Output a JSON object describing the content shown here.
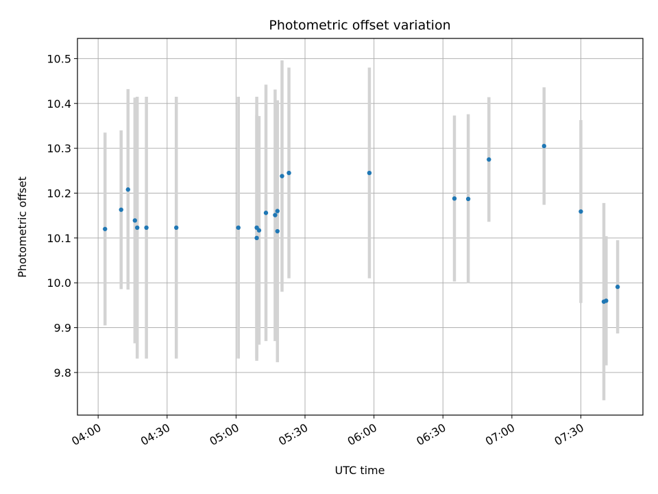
{
  "chart_data": {
    "type": "scatter",
    "title": "Photometric offset variation",
    "xlabel": "UTC time",
    "ylabel": "Photometric offset",
    "xlim": [
      "03:51",
      "07:57"
    ],
    "ylim": [
      9.705,
      10.545
    ],
    "grid": true,
    "xticks": [
      "04:00",
      "04:30",
      "05:00",
      "05:30",
      "06:00",
      "06:30",
      "07:00",
      "07:30"
    ],
    "yticks": [
      9.8,
      9.9,
      10.0,
      10.1,
      10.2,
      10.3,
      10.4,
      10.5
    ],
    "ytick_labels": [
      "9.8",
      "9.9",
      "10.0",
      "10.1",
      "10.2",
      "10.3",
      "10.4",
      "10.5"
    ],
    "series": [
      {
        "marker_color": "#1f77b4",
        "errorbar_color": "#d3d3d3",
        "points": [
          {
            "t": "04:03",
            "y": 10.12,
            "ylo": 9.905,
            "yhi": 10.335
          },
          {
            "t": "04:10",
            "y": 10.163,
            "ylo": 9.986,
            "yhi": 10.34
          },
          {
            "t": "04:13",
            "y": 10.208,
            "ylo": 9.985,
            "yhi": 10.432
          },
          {
            "t": "04:16",
            "y": 10.139,
            "ylo": 9.865,
            "yhi": 10.413
          },
          {
            "t": "04:17",
            "y": 10.123,
            "ylo": 9.831,
            "yhi": 10.415
          },
          {
            "t": "04:21",
            "y": 10.123,
            "ylo": 9.831,
            "yhi": 10.415
          },
          {
            "t": "04:34",
            "y": 10.123,
            "ylo": 9.831,
            "yhi": 10.415
          },
          {
            "t": "05:01",
            "y": 10.123,
            "ylo": 9.831,
            "yhi": 10.415
          },
          {
            "t": "05:09",
            "y": 10.123,
            "ylo": 9.831,
            "yhi": 10.415
          },
          {
            "t": "05:09",
            "y": 10.1,
            "ylo": 9.826,
            "yhi": 10.374
          },
          {
            "t": "05:10",
            "y": 10.117,
            "ylo": 9.862,
            "yhi": 10.372
          },
          {
            "t": "05:13",
            "y": 10.156,
            "ylo": 9.87,
            "yhi": 10.442
          },
          {
            "t": "05:17",
            "y": 10.151,
            "ylo": 9.87,
            "yhi": 10.431
          },
          {
            "t": "05:18",
            "y": 10.115,
            "ylo": 9.823,
            "yhi": 10.407
          },
          {
            "t": "05:18",
            "y": 10.16,
            "ylo": 9.915,
            "yhi": 10.405
          },
          {
            "t": "05:20",
            "y": 10.238,
            "ylo": 9.98,
            "yhi": 10.496
          },
          {
            "t": "05:23",
            "y": 10.245,
            "ylo": 10.01,
            "yhi": 10.48
          },
          {
            "t": "05:58",
            "y": 10.245,
            "ylo": 10.01,
            "yhi": 10.48
          },
          {
            "t": "06:35",
            "y": 10.188,
            "ylo": 10.003,
            "yhi": 10.373
          },
          {
            "t": "06:41",
            "y": 10.187,
            "ylo": 9.999,
            "yhi": 10.376
          },
          {
            "t": "06:50",
            "y": 10.275,
            "ylo": 10.136,
            "yhi": 10.414
          },
          {
            "t": "07:14",
            "y": 10.305,
            "ylo": 10.174,
            "yhi": 10.436
          },
          {
            "t": "07:30",
            "y": 10.159,
            "ylo": 9.955,
            "yhi": 10.363
          },
          {
            "t": "07:40",
            "y": 9.958,
            "ylo": 9.738,
            "yhi": 10.178
          },
          {
            "t": "07:41",
            "y": 9.96,
            "ylo": 9.816,
            "yhi": 10.104
          },
          {
            "t": "07:46",
            "y": 9.991,
            "ylo": 9.887,
            "yhi": 10.095
          }
        ]
      }
    ]
  }
}
